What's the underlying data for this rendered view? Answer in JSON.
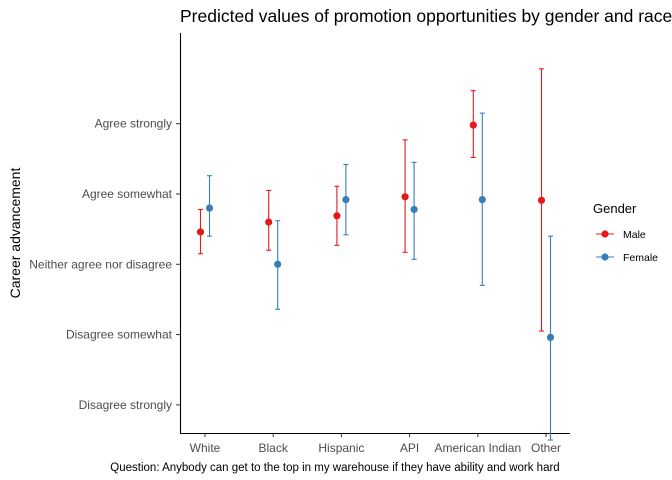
{
  "chart_data": {
    "type": "scatter",
    "title": "Predicted values of promotion opportunities by gender and race",
    "xlabel": "Question: Anybody can get to the top in my warehouse if they have ability and work hard",
    "ylabel": "Career advancement",
    "categories": [
      "White",
      "Black",
      "Hispanic",
      "API",
      "American Indian",
      "Other"
    ],
    "y_ticks": [
      {
        "value": 1,
        "label": "Disagree strongly"
      },
      {
        "value": 2,
        "label": "Disagree somewhat"
      },
      {
        "value": 3,
        "label": "Neither agree nor disagree"
      },
      {
        "value": 4,
        "label": "Agree somewhat"
      },
      {
        "value": 5,
        "label": "Agree strongly"
      }
    ],
    "ylim": [
      0.6,
      6.29
    ],
    "grid": false,
    "legend": {
      "title": "Gender",
      "position": "right"
    },
    "series": [
      {
        "name": "Male",
        "color": "#e41a1c",
        "values": [
          3.46,
          3.6,
          3.69,
          3.96,
          4.98,
          3.91
        ],
        "lower": [
          3.15,
          3.2,
          3.27,
          3.17,
          4.52,
          2.05
        ],
        "upper": [
          3.78,
          4.05,
          4.11,
          4.77,
          5.47,
          5.78
        ]
      },
      {
        "name": "Female",
        "color": "#377eb8",
        "values": [
          3.8,
          3.0,
          3.92,
          3.78,
          3.92,
          1.96
        ],
        "lower": [
          3.4,
          2.36,
          3.42,
          3.07,
          2.7,
          0.5
        ],
        "upper": [
          4.26,
          3.62,
          4.42,
          4.45,
          5.15,
          3.4
        ]
      }
    ]
  }
}
